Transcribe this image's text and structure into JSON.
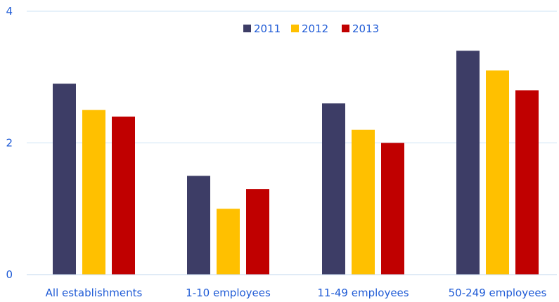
{
  "chart_data": {
    "type": "bar",
    "title": "",
    "xlabel": "",
    "ylabel": "",
    "categories": [
      "All establishments",
      "1-10 employees",
      "11-49 employees",
      "50-249 employees"
    ],
    "series": [
      {
        "name": "2011",
        "color": "#3d3d66",
        "values": [
          2.9,
          1.5,
          2.6,
          3.4
        ]
      },
      {
        "name": "2012",
        "color": "#ffc000",
        "values": [
          2.5,
          1.0,
          2.2,
          3.1
        ]
      },
      {
        "name": "2013",
        "color": "#c00000",
        "values": [
          2.4,
          1.3,
          2.0,
          2.8
        ]
      }
    ],
    "ylim": [
      0,
      4
    ],
    "yticks": [
      "0",
      "2",
      "4"
    ],
    "grid": true,
    "legend_position": "top-center"
  }
}
